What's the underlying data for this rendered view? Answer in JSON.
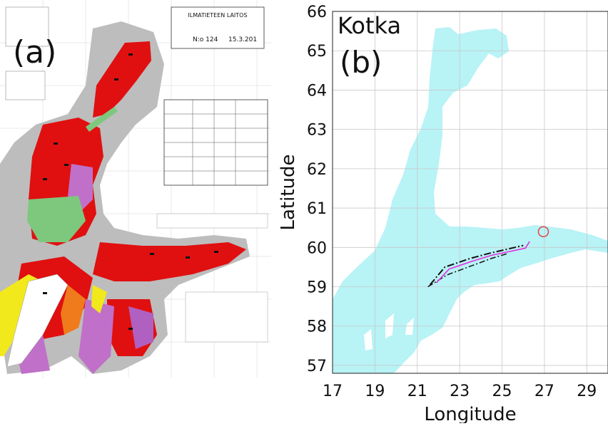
{
  "panel_a": {
    "label": "(a)",
    "header_title": "ILMATIETEEN LAITOS",
    "header_number": "N:o 124",
    "header_date": "15.3.201"
  },
  "panel_b": {
    "label": "(b)",
    "place_label": "Kotka",
    "colors": {
      "sea": "#b8f3f6",
      "grid": "#c8c8c8",
      "route": "#e22ee0",
      "track": "#111111",
      "marker": "#e05050"
    },
    "icons": {
      "marker": "circle-marker-icon"
    }
  },
  "chart_data": {
    "type": "map",
    "xlabel": "Longitude",
    "ylabel": "Latitude",
    "xlim": [
      17,
      30
    ],
    "ylim": [
      56.8,
      66
    ],
    "xticks": [
      "17",
      "19",
      "21",
      "23",
      "25",
      "27",
      "29"
    ],
    "yticks": [
      "57",
      "58",
      "59",
      "60",
      "61",
      "62",
      "63",
      "64",
      "65",
      "66"
    ],
    "grid": true,
    "marker": {
      "lon": 26.95,
      "lat": 60.4
    },
    "route_magenta": [
      [
        21.9,
        59.1
      ],
      [
        22.5,
        59.45
      ],
      [
        23.6,
        59.65
      ],
      [
        24.5,
        59.8
      ],
      [
        26.1,
        59.98
      ],
      [
        26.3,
        60.15
      ]
    ],
    "track_upper": [
      [
        21.6,
        59.05
      ],
      [
        22.3,
        59.5
      ],
      [
        23.5,
        59.72
      ],
      [
        24.4,
        59.85
      ],
      [
        26.0,
        60.05
      ]
    ],
    "track_lower": [
      [
        21.5,
        59.0
      ],
      [
        22.4,
        59.3
      ],
      [
        23.4,
        59.5
      ],
      [
        24.5,
        59.72
      ],
      [
        25.3,
        59.85
      ]
    ]
  }
}
